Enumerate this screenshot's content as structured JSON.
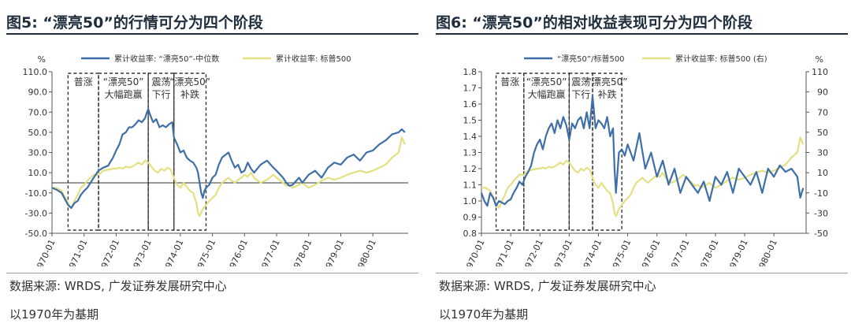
{
  "charts": [
    {
      "title": "图5: “漂亮50”的行情可分为四个阶段",
      "source": "数据来源: WRDS, 广发证券发展研究中心",
      "base_note": "以1970年为基期",
      "colors": {
        "series1": "#3f6fa8",
        "series2": "#e3e084",
        "box": "#333333",
        "zero": "#333333"
      }
    },
    {
      "title": "图6: “漂亮50”的相对收益表现可分为四个阶段",
      "source": "数据来源: WRDS, 广发证券发展研究中心",
      "base_note": "以1970年为基期",
      "colors": {
        "series1": "#3f6fa8",
        "series2": "#e3e084",
        "box": "#333333",
        "zero": "#333333"
      }
    }
  ],
  "chart_data": [
    {
      "type": "line",
      "title": "“漂亮50”的行情可分为四个阶段",
      "ylabel": "%",
      "ylim": [
        -50,
        110
      ],
      "yticks": [
        "110.0",
        "90.0",
        "70.0",
        "50.0",
        "30.0",
        "10.0",
        "-10.0",
        "-30.0",
        "-50.0"
      ],
      "x_categories": [
        "1970-01",
        "1971-01",
        "1972-01",
        "1973-01",
        "1974-01",
        "1975-01",
        "1976-01",
        "1977-01",
        "1978-01",
        "1979-01",
        "1980-01"
      ],
      "xlim": [
        0,
        11.1
      ],
      "zero_line": 0,
      "phases": [
        {
          "label": [
            "普涨"
          ],
          "x": [
            0.5,
            1.45
          ]
        },
        {
          "label": [
            "“漂亮50”",
            "大幅跑赢"
          ],
          "x": [
            1.45,
            3.0
          ]
        },
        {
          "label": [
            "震荡",
            "下行"
          ],
          "x": [
            3.0,
            3.8
          ]
        },
        {
          "label": [
            "“漂亮50”",
            "补跌"
          ],
          "x": [
            3.8,
            4.8
          ]
        }
      ],
      "series": [
        {
          "name": "累计收益率: “漂亮50”-中位数",
          "x": [
            0,
            0.15,
            0.3,
            0.5,
            0.6,
            0.7,
            0.8,
            0.9,
            1.0,
            1.1,
            1.2,
            1.3,
            1.45,
            1.6,
            1.75,
            1.9,
            2.0,
            2.1,
            2.2,
            2.3,
            2.4,
            2.5,
            2.6,
            2.7,
            2.8,
            2.9,
            2.95,
            3.0,
            3.05,
            3.15,
            3.25,
            3.35,
            3.45,
            3.55,
            3.65,
            3.75,
            3.8,
            3.9,
            4.0,
            4.1,
            4.2,
            4.3,
            4.4,
            4.5,
            4.55,
            4.6,
            4.65,
            4.7,
            4.75,
            4.8,
            4.9,
            5.0,
            5.1,
            5.2,
            5.3,
            5.5,
            5.6,
            5.7,
            5.8,
            5.9,
            6.0,
            6.1,
            6.2,
            6.3,
            6.5,
            6.7,
            6.9,
            7.0,
            7.2,
            7.3,
            7.4,
            7.5,
            7.7,
            7.8,
            8.0,
            8.2,
            8.4,
            8.6,
            8.8,
            9.0,
            9.2,
            9.4,
            9.6,
            9.8,
            10.0,
            10.2,
            10.4,
            10.6,
            10.8,
            10.9,
            11.0
          ],
          "values": [
            -5,
            -7,
            -10,
            -22,
            -25,
            -20,
            -18,
            -12,
            -8,
            -5,
            0,
            5,
            12,
            15,
            17,
            25,
            32,
            38,
            48,
            50,
            55,
            55,
            58,
            62,
            60,
            64,
            69,
            73,
            68,
            60,
            63,
            55,
            57,
            55,
            58,
            60,
            45,
            38,
            30,
            32,
            25,
            22,
            20,
            15,
            10,
            0,
            -10,
            -15,
            -8,
            -5,
            -2,
            5,
            8,
            18,
            25,
            30,
            22,
            15,
            18,
            10,
            12,
            20,
            14,
            10,
            18,
            22,
            15,
            12,
            5,
            0,
            -3,
            -2,
            5,
            0,
            8,
            12,
            5,
            15,
            20,
            18,
            25,
            28,
            22,
            30,
            32,
            38,
            42,
            48,
            50,
            53,
            50
          ]
        },
        {
          "name": "累计收益率: 标普500",
          "x": [
            0,
            0.15,
            0.3,
            0.5,
            0.6,
            0.7,
            0.8,
            0.9,
            1.0,
            1.1,
            1.2,
            1.3,
            1.45,
            1.6,
            1.75,
            1.9,
            2.0,
            2.1,
            2.2,
            2.3,
            2.4,
            2.5,
            2.6,
            2.7,
            2.8,
            2.9,
            3.0,
            3.1,
            3.2,
            3.3,
            3.4,
            3.5,
            3.6,
            3.7,
            3.8,
            3.9,
            4.0,
            4.1,
            4.2,
            4.3,
            4.4,
            4.5,
            4.55,
            4.6,
            4.7,
            4.8,
            4.9,
            5.0,
            5.1,
            5.2,
            5.3,
            5.5,
            5.6,
            5.7,
            5.8,
            5.9,
            6.0,
            6.1,
            6.2,
            6.3,
            6.5,
            6.7,
            6.9,
            7.0,
            7.2,
            7.3,
            7.4,
            7.5,
            7.7,
            7.8,
            8.0,
            8.2,
            8.4,
            8.6,
            8.8,
            9.0,
            9.2,
            9.4,
            9.6,
            9.8,
            10.0,
            10.2,
            10.4,
            10.6,
            10.8,
            10.9,
            11.0
          ],
          "values": [
            -5,
            -5,
            -8,
            -20,
            -25,
            -18,
            -12,
            -5,
            -2,
            2,
            5,
            8,
            8,
            12,
            13,
            14,
            14,
            15,
            14,
            16,
            15,
            16,
            18,
            20,
            18,
            22,
            20,
            16,
            12,
            10,
            14,
            12,
            15,
            13,
            5,
            -2,
            -5,
            0,
            -4,
            -8,
            -10,
            -20,
            -30,
            -33,
            -26,
            -22,
            -18,
            -15,
            -12,
            -5,
            0,
            5,
            2,
            0,
            3,
            5,
            8,
            6,
            10,
            5,
            0,
            3,
            8,
            5,
            0,
            -3,
            -2,
            -5,
            -2,
            0,
            -5,
            -2,
            2,
            5,
            3,
            5,
            8,
            10,
            12,
            10,
            12,
            15,
            18,
            25,
            30,
            45,
            38
          ]
        }
      ]
    },
    {
      "type": "line",
      "title": "“漂亮50”的相对收益表现可分为四个阶段",
      "ylim_left": [
        0.8,
        1.8
      ],
      "yticks_left": [
        "1.8",
        "1.7",
        "1.6",
        "1.5",
        "1.4",
        "1.3",
        "1.2",
        "1.1",
        "1.0",
        "0.9",
        "0.8"
      ],
      "ylabel_right": "%",
      "ylim_right": [
        -50,
        110
      ],
      "yticks_right": [
        "110",
        "90",
        "70",
        "50",
        "30",
        "10",
        "-10",
        "-30",
        "-50"
      ],
      "x_categories": [
        "1970-01",
        "1971-01",
        "1972-01",
        "1973-01",
        "1974-01",
        "1975-01",
        "1976-01",
        "1977-01",
        "1978-01",
        "1979-01",
        "1980-01"
      ],
      "xlim": [
        0,
        11.1
      ],
      "phases": [
        {
          "label": [
            "普涨"
          ],
          "x": [
            0.5,
            1.45
          ]
        },
        {
          "label": [
            "“漂亮50”",
            "大幅跑赢"
          ],
          "x": [
            1.45,
            3.0
          ]
        },
        {
          "label": [
            "震荡",
            "下行"
          ],
          "x": [
            3.0,
            3.8
          ]
        },
        {
          "label": [
            "“漂亮50”",
            "补跌"
          ],
          "x": [
            3.8,
            4.8
          ]
        }
      ],
      "series": [
        {
          "name": "“漂亮50”/标普500",
          "axis": "left",
          "x": [
            0,
            0.1,
            0.2,
            0.3,
            0.4,
            0.5,
            0.6,
            0.7,
            0.8,
            0.9,
            1.0,
            1.1,
            1.2,
            1.3,
            1.4,
            1.5,
            1.6,
            1.7,
            1.8,
            1.9,
            2.0,
            2.1,
            2.2,
            2.3,
            2.4,
            2.5,
            2.6,
            2.7,
            2.8,
            2.9,
            3.0,
            3.1,
            3.2,
            3.3,
            3.4,
            3.5,
            3.6,
            3.7,
            3.8,
            3.9,
            4.0,
            4.1,
            4.2,
            4.3,
            4.4,
            4.5,
            4.55,
            4.6,
            4.7,
            4.8,
            4.9,
            5.0,
            5.2,
            5.4,
            5.6,
            5.8,
            6.0,
            6.2,
            6.4,
            6.6,
            6.8,
            7.0,
            7.2,
            7.4,
            7.6,
            7.8,
            8.0,
            8.2,
            8.4,
            8.6,
            8.8,
            9.0,
            9.2,
            9.4,
            9.6,
            9.8,
            10.0,
            10.2,
            10.4,
            10.6,
            10.8,
            10.9,
            11.0
          ],
          "values": [
            1.05,
            1.0,
            0.97,
            1.05,
            1.02,
            0.97,
            1.0,
            0.99,
            0.98,
            1.0,
            1.01,
            1.05,
            1.08,
            1.12,
            1.1,
            1.15,
            1.18,
            1.22,
            1.3,
            1.35,
            1.38,
            1.32,
            1.4,
            1.45,
            1.48,
            1.42,
            1.5,
            1.45,
            1.52,
            1.47,
            1.38,
            1.48,
            1.45,
            1.5,
            1.52,
            1.45,
            1.55,
            1.45,
            1.65,
            1.45,
            1.5,
            1.48,
            1.45,
            1.52,
            1.4,
            1.45,
            1.2,
            1.05,
            1.3,
            1.32,
            1.28,
            1.35,
            1.25,
            1.42,
            1.2,
            1.3,
            1.15,
            1.25,
            1.1,
            1.2,
            1.05,
            1.15,
            1.1,
            1.05,
            1.12,
            1.0,
            1.15,
            1.1,
            1.18,
            1.05,
            1.2,
            1.15,
            1.1,
            1.18,
            1.05,
            1.2,
            1.15,
            1.22,
            1.18,
            1.2,
            1.15,
            1.02,
            1.08
          ]
        },
        {
          "name": "累计收益率: 标普500 (右)",
          "axis": "right",
          "x": [
            0,
            0.15,
            0.3,
            0.5,
            0.6,
            0.7,
            0.8,
            0.9,
            1.0,
            1.1,
            1.2,
            1.3,
            1.45,
            1.6,
            1.75,
            1.9,
            2.0,
            2.1,
            2.2,
            2.3,
            2.4,
            2.5,
            2.6,
            2.7,
            2.8,
            2.9,
            3.0,
            3.1,
            3.2,
            3.3,
            3.4,
            3.5,
            3.6,
            3.7,
            3.8,
            3.9,
            4.0,
            4.1,
            4.2,
            4.3,
            4.4,
            4.5,
            4.55,
            4.6,
            4.7,
            4.8,
            4.9,
            5.0,
            5.1,
            5.2,
            5.3,
            5.5,
            5.6,
            5.7,
            5.8,
            5.9,
            6.0,
            6.1,
            6.2,
            6.3,
            6.5,
            6.7,
            6.9,
            7.0,
            7.2,
            7.3,
            7.4,
            7.5,
            7.7,
            7.8,
            8.0,
            8.2,
            8.4,
            8.6,
            8.8,
            9.0,
            9.2,
            9.4,
            9.6,
            9.8,
            10.0,
            10.2,
            10.4,
            10.6,
            10.8,
            10.9,
            11.0
          ],
          "values": [
            -5,
            -5,
            -8,
            -20,
            -25,
            -18,
            -12,
            -5,
            -2,
            2,
            5,
            8,
            8,
            12,
            13,
            14,
            14,
            15,
            14,
            16,
            15,
            16,
            18,
            20,
            18,
            22,
            20,
            16,
            12,
            10,
            14,
            12,
            15,
            13,
            5,
            -2,
            -5,
            0,
            -4,
            -8,
            -10,
            -20,
            -30,
            -33,
            -26,
            -22,
            -18,
            -15,
            -12,
            -5,
            0,
            5,
            2,
            0,
            3,
            5,
            8,
            6,
            10,
            5,
            0,
            3,
            8,
            5,
            0,
            -3,
            -2,
            -5,
            -2,
            0,
            -5,
            -2,
            2,
            5,
            3,
            5,
            8,
            10,
            12,
            10,
            12,
            15,
            18,
            25,
            30,
            45,
            38
          ]
        }
      ]
    }
  ]
}
